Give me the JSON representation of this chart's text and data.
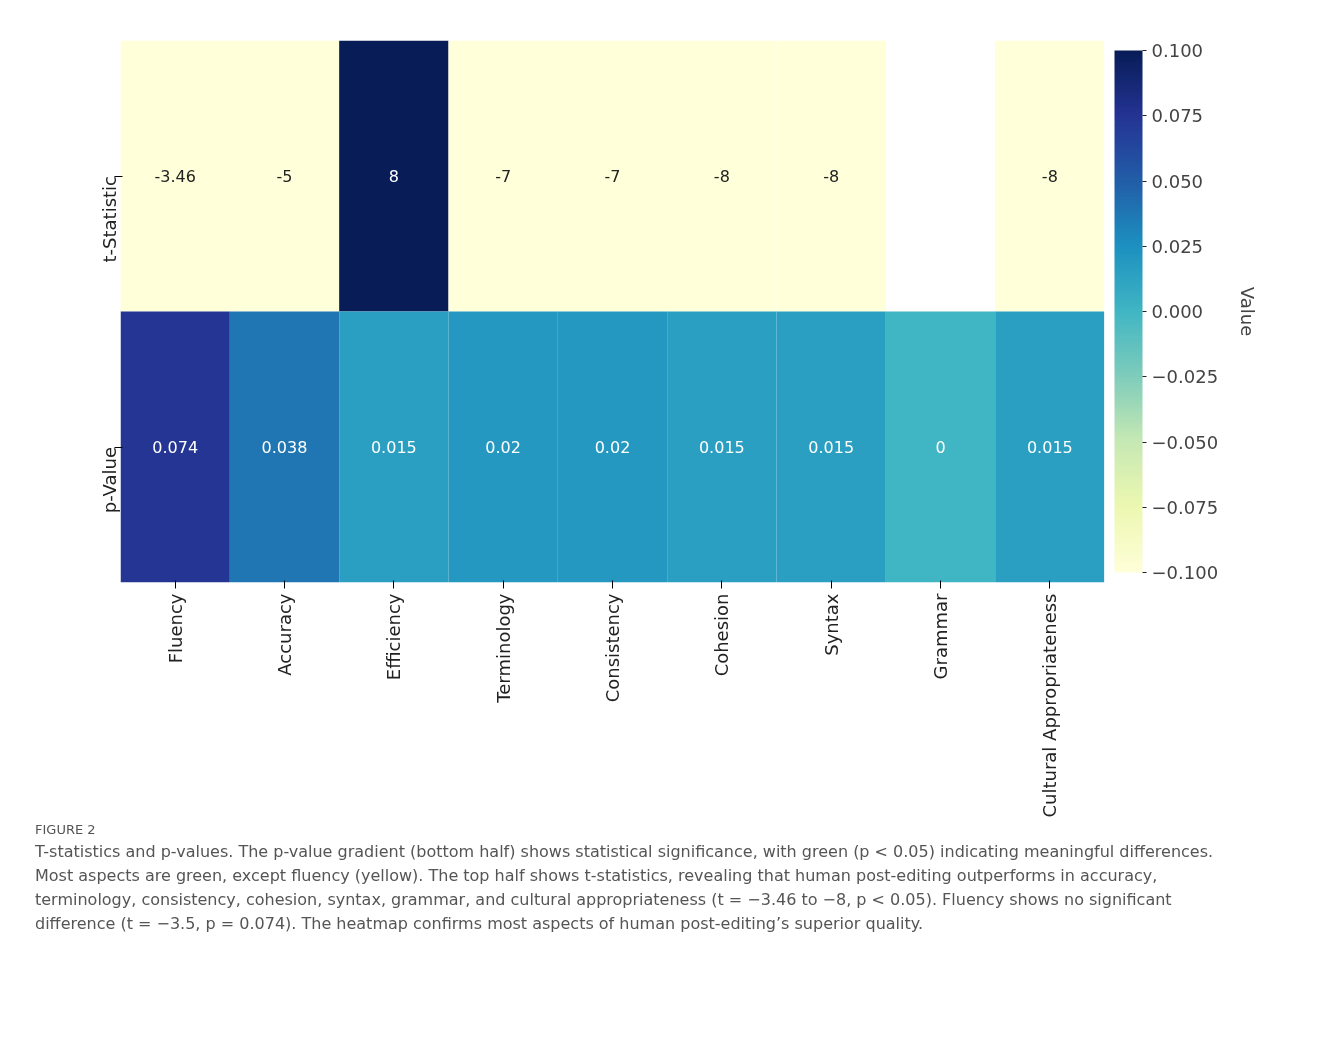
{
  "chart_data": {
    "type": "heatmap",
    "categories": [
      "Fluency",
      "Accuracy",
      "Efficiency",
      "Terminology",
      "Consistency",
      "Cohesion",
      "Syntax",
      "Grammar",
      "Cultural Appropriateness"
    ],
    "y_categories": [
      "t-Statistic",
      "p-Value"
    ],
    "cells": [
      [
        -3.46,
        -5,
        8,
        -7,
        -7,
        -8,
        -8,
        null,
        -8
      ],
      [
        0.074,
        0.038,
        0.015,
        0.02,
        0.02,
        0.015,
        0.015,
        0,
        0.015
      ]
    ],
    "data_labels": true,
    "clabel": "Value",
    "clim": [
      -0.1,
      0.1
    ],
    "cticks": [
      {
        "value": -0.1,
        "label": "−0.100"
      },
      {
        "value": -0.075,
        "label": "−0.075"
      },
      {
        "value": -0.05,
        "label": "−0.050"
      },
      {
        "value": -0.025,
        "label": "−0.025"
      },
      {
        "value": 0,
        "label": "0.000"
      },
      {
        "value": 0.025,
        "label": "0.025"
      },
      {
        "value": 0.05,
        "label": "0.050"
      },
      {
        "value": 0.075,
        "label": "0.075"
      },
      {
        "value": 0.1,
        "label": "0.100"
      }
    ],
    "grid": false,
    "annotations": [
      "FIGURE 2",
      "T-statistics and p-values. The p-value gradient (bottom half) shows statistical significance, with green (p < 0.05) indicating meaningful differences. Most aspects are green, except fluency (yellow). The top half shows t-statistics, revealing that human post-editing outperforms in accuracy, terminology, consistency, cohesion, syntax, grammar, and cultural appropriateness (t = −3.46 to −8, p < 0.05). Fluency shows no significant difference (t = −3.5, p = 0.074). The heatmap confirms most aspects of human post-editing’s superior quality."
    ]
  }
}
